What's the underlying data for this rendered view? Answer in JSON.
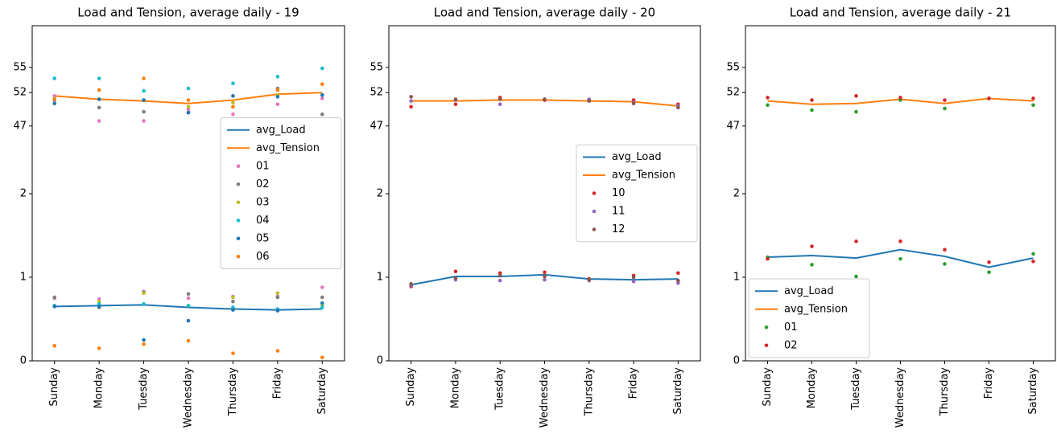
{
  "chart_data": [
    {
      "type": "line",
      "title": "Load and Tension, average daily - 19",
      "categories": [
        "Sunday",
        "Monday",
        "Tuesday",
        "Wednesday",
        "Thursday",
        "Friday",
        "Saturday"
      ],
      "ylim": [
        0,
        4.01
      ],
      "yticks": [
        0,
        1,
        2,
        {
          "value": 2.81,
          "label": "47"
        },
        {
          "value": 3.21,
          "label": "52"
        },
        {
          "value": 3.51,
          "label": "55"
        }
      ],
      "legend": "center right",
      "lines": [
        {
          "name": "avg_Load",
          "color": "#1f77b4",
          "values": [
            0.65,
            0.66,
            0.67,
            0.64,
            0.62,
            0.61,
            0.62
          ]
        },
        {
          "name": "avg_Tension",
          "color": "#ff7f0e",
          "values": [
            3.17,
            3.13,
            3.11,
            3.08,
            3.12,
            3.19,
            3.21
          ]
        }
      ],
      "series": [
        {
          "name": "01",
          "color": "#e377c2",
          "load": [
            0.75,
            0.74,
            0.83,
            0.75,
            0.77,
            0.77,
            0.88
          ],
          "tension": [
            3.17,
            2.87,
            2.87,
            3.01,
            2.95,
            3.07,
            3.14
          ]
        },
        {
          "name": "02",
          "color": "#7f7f7f",
          "load": [
            0.76,
            0.64,
            0.82,
            0.8,
            0.71,
            0.76,
            0.76
          ],
          "tension": [
            3.12,
            3.03,
            2.98,
            2.97,
            3.04,
            3.26,
            2.95
          ]
        },
        {
          "name": "03",
          "color": "#bcbd22",
          "load": [
            0.66,
            0.71,
            0.81,
            0.66,
            0.76,
            0.81,
            0.66
          ],
          "tension": [
            3.14,
            3.13,
            3.12,
            3.04,
            3.09,
            3.18,
            3.18
          ]
        },
        {
          "name": "04",
          "color": "#17becf",
          "load": [
            0.66,
            0.68,
            0.68,
            0.66,
            0.64,
            0.62,
            0.64
          ],
          "tension": [
            3.38,
            3.38,
            3.23,
            3.26,
            3.32,
            3.4,
            3.5
          ]
        },
        {
          "name": "05",
          "color": "#1f77b4",
          "load": [
            0.65,
            0.65,
            0.25,
            0.48,
            0.61,
            0.6,
            0.69
          ],
          "tension": [
            3.08,
            3.13,
            3.12,
            2.97,
            3.17,
            3.16,
            3.18
          ]
        },
        {
          "name": "06",
          "color": "#ff7f0e",
          "load": [
            0.18,
            0.15,
            0.2,
            0.24,
            0.09,
            0.12,
            0.04
          ],
          "tension": [
            3.13,
            3.24,
            3.38,
            3.12,
            3.04,
            3.24,
            3.31
          ]
        }
      ]
    },
    {
      "type": "line",
      "title": "Load and Tension, average daily - 20",
      "categories": [
        "Sunday",
        "Monday",
        "Tuesday",
        "Wednesday",
        "Thursday",
        "Friday",
        "Saturday"
      ],
      "ylim": [
        0,
        4.01
      ],
      "yticks": [
        0,
        1,
        2,
        {
          "value": 2.81,
          "label": "47"
        },
        {
          "value": 3.21,
          "label": "52"
        },
        {
          "value": 3.51,
          "label": "55"
        }
      ],
      "legend": "center right",
      "lines": [
        {
          "name": "avg_Load",
          "color": "#1f77b4",
          "values": [
            0.91,
            1.01,
            1.01,
            1.03,
            0.98,
            0.97,
            0.98
          ]
        },
        {
          "name": "avg_Tension",
          "color": "#ff7f0e",
          "values": [
            3.11,
            3.11,
            3.12,
            3.12,
            3.11,
            3.1,
            3.05
          ]
        }
      ],
      "series": [
        {
          "name": "10",
          "color": "#d62728",
          "load": [
            0.89,
            1.07,
            1.05,
            1.06,
            0.98,
            1.02,
            1.05
          ],
          "tension": [
            3.04,
            3.07,
            3.15,
            3.12,
            3.12,
            3.12,
            3.07
          ]
        },
        {
          "name": "11",
          "color": "#9467bd",
          "load": [
            0.9,
            0.97,
            0.96,
            0.97,
            0.96,
            0.95,
            0.93
          ],
          "tension": [
            3.11,
            3.12,
            3.07,
            3.13,
            3.13,
            3.09,
            3.05
          ]
        },
        {
          "name": "12",
          "color": "#8c564b",
          "load": [
            0.92,
            0.99,
            1.02,
            1.01,
            0.97,
            1.0,
            0.96
          ],
          "tension": [
            3.16,
            3.13,
            3.13,
            3.13,
            3.11,
            3.08,
            3.03
          ]
        }
      ]
    },
    {
      "type": "line",
      "title": "Load and Tension, average daily - 21",
      "categories": [
        "Sunday",
        "Monday",
        "Tuesday",
        "Wednesday",
        "Thursday",
        "Friday",
        "Saturday"
      ],
      "ylim": [
        0,
        4.01
      ],
      "yticks": [
        0,
        1,
        2,
        {
          "value": 2.81,
          "label": "47"
        },
        {
          "value": 3.21,
          "label": "52"
        },
        {
          "value": 3.51,
          "label": "55"
        }
      ],
      "legend": "lower left",
      "lines": [
        {
          "name": "avg_Load",
          "color": "#1f77b4",
          "values": [
            1.24,
            1.26,
            1.23,
            1.33,
            1.25,
            1.12,
            1.23
          ]
        },
        {
          "name": "avg_Tension",
          "color": "#ff7f0e",
          "values": [
            3.11,
            3.07,
            3.08,
            3.13,
            3.08,
            3.14,
            3.11
          ]
        }
      ],
      "series": [
        {
          "name": "01",
          "color": "#2ca02c",
          "load": [
            1.24,
            1.15,
            1.01,
            1.22,
            1.16,
            1.06,
            1.28
          ],
          "tension": [
            3.06,
            3.0,
            2.98,
            3.12,
            3.02,
            3.14,
            3.06
          ]
        },
        {
          "name": "02",
          "color": "#d62728",
          "load": [
            1.22,
            1.37,
            1.43,
            1.43,
            1.33,
            1.18,
            1.19
          ],
          "tension": [
            3.15,
            3.12,
            3.17,
            3.15,
            3.12,
            3.14,
            3.14
          ]
        }
      ]
    }
  ]
}
